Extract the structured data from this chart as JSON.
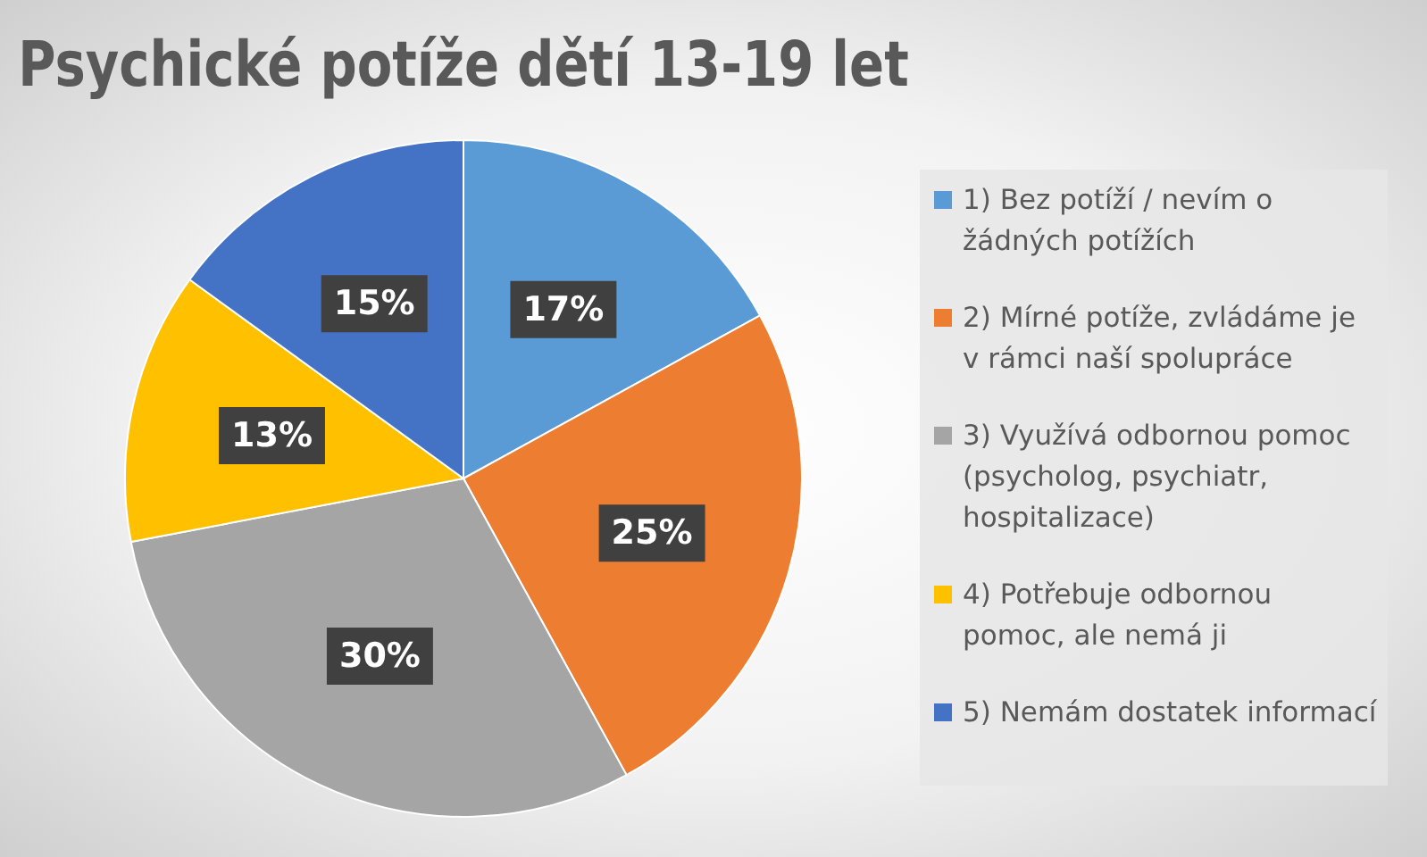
{
  "chart_data": {
    "type": "pie",
    "title": "Psychické potíže dětí 13-19 let",
    "categories": [
      "1) Bez potíží / nevím o žádných potížích",
      "2) Mírné potíže, zvládáme je v rámci naší spolupráce",
      "3) Využívá odbornou pomoc (psycholog, psychiatr, hospitalizace)",
      "4) Potřebuje odbornou pomoc, ale nemá ji",
      "5) Nemám dostatek informací"
    ],
    "values": [
      17,
      25,
      30,
      13,
      15
    ],
    "value_labels": [
      "17%",
      "25%",
      "30%",
      "13%",
      "15%"
    ],
    "colors": [
      "#5b9bd5",
      "#ed7d31",
      "#a5a5a5",
      "#ffc000",
      "#4472c4"
    ],
    "legend": "right"
  }
}
